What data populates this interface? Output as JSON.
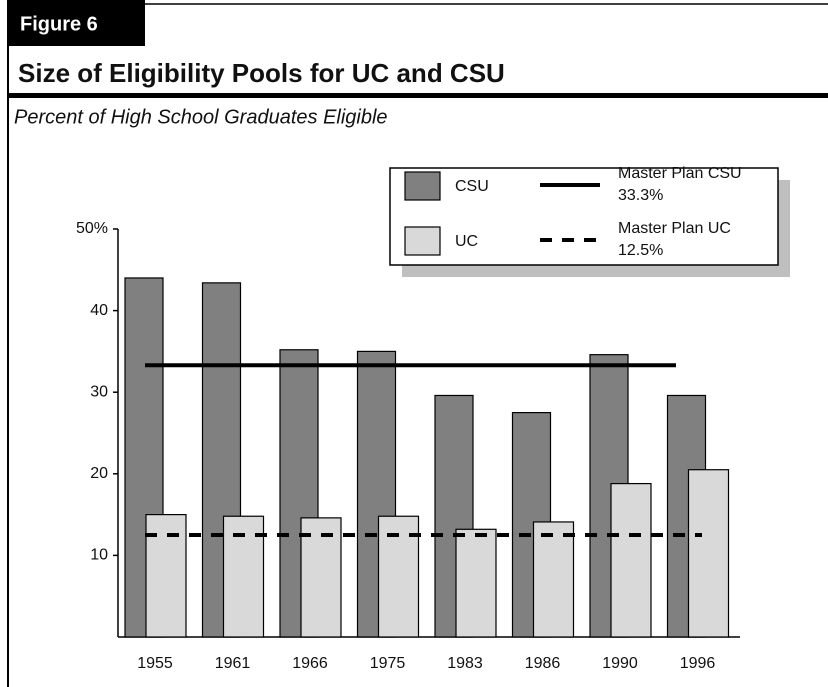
{
  "chart_data": {
    "type": "bar",
    "figure_label": "Figure 6",
    "title": "Size of Eligibility Pools for UC and CSU",
    "subtitle": "Percent of High School Graduates Eligible",
    "categories": [
      "1955",
      "1961",
      "1966",
      "1975",
      "1983",
      "1986",
      "1990",
      "1996"
    ],
    "series": [
      {
        "name": "CSU",
        "color": "#808080",
        "values": [
          44,
          43.4,
          35.2,
          35,
          29.6,
          27.5,
          34.6,
          29.6
        ]
      },
      {
        "name": "UC",
        "color": "#d9d9d9",
        "values": [
          15,
          14.8,
          14.6,
          14.8,
          13.2,
          14.1,
          18.8,
          20.5
        ]
      }
    ],
    "reference_lines": [
      {
        "name": "Master Plan CSU",
        "value": 33.3,
        "value_label": "33.3%",
        "style": "solid"
      },
      {
        "name": "Master Plan UC",
        "value": 12.5,
        "value_label": "12.5%",
        "style": "dashed"
      }
    ],
    "ylim": [
      0,
      50
    ],
    "yticks": [
      10,
      20,
      30,
      40,
      {
        "value": 50,
        "label": "50%"
      }
    ]
  }
}
